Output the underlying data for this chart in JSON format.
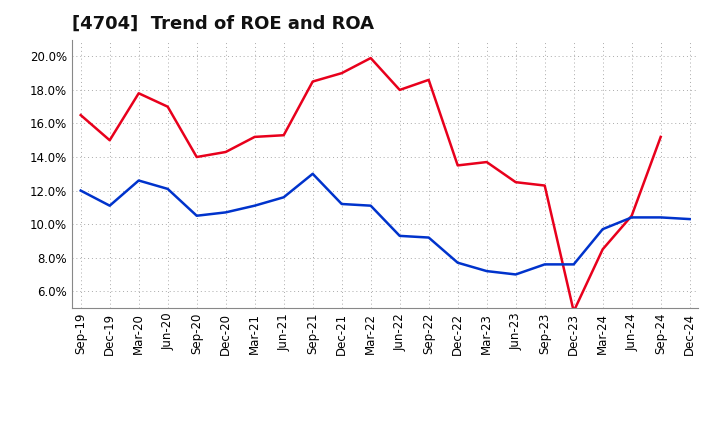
{
  "title": "[4704]  Trend of ROE and ROA",
  "x_labels": [
    "Sep-19",
    "Dec-19",
    "Mar-20",
    "Jun-20",
    "Sep-20",
    "Dec-20",
    "Mar-21",
    "Jun-21",
    "Sep-21",
    "Dec-21",
    "Mar-22",
    "Jun-22",
    "Sep-22",
    "Dec-22",
    "Mar-23",
    "Jun-23",
    "Sep-23",
    "Dec-23",
    "Mar-24",
    "Jun-24",
    "Sep-24",
    "Dec-24"
  ],
  "roe": [
    16.5,
    15.0,
    17.8,
    17.0,
    14.0,
    14.3,
    15.2,
    15.3,
    18.5,
    19.0,
    19.9,
    18.0,
    18.6,
    13.5,
    13.7,
    12.5,
    12.3,
    4.8,
    8.5,
    10.5,
    15.2,
    null
  ],
  "roa": [
    12.0,
    11.1,
    12.6,
    12.1,
    10.5,
    10.7,
    11.1,
    11.6,
    13.0,
    11.2,
    11.1,
    9.3,
    9.2,
    7.7,
    7.2,
    7.0,
    7.6,
    7.6,
    9.7,
    10.4,
    10.4,
    10.3
  ],
  "roe_color": "#e8001c",
  "roa_color": "#0033cc",
  "bg_color": "#ffffff",
  "plot_bg_color": "#ffffff",
  "grid_color": "#aaaaaa",
  "ylim": [
    5.0,
    21.0
  ],
  "yticks": [
    6.0,
    8.0,
    10.0,
    12.0,
    14.0,
    16.0,
    18.0,
    20.0
  ],
  "title_fontsize": 13,
  "legend_fontsize": 10,
  "tick_fontsize": 8.5,
  "linewidth": 1.8
}
